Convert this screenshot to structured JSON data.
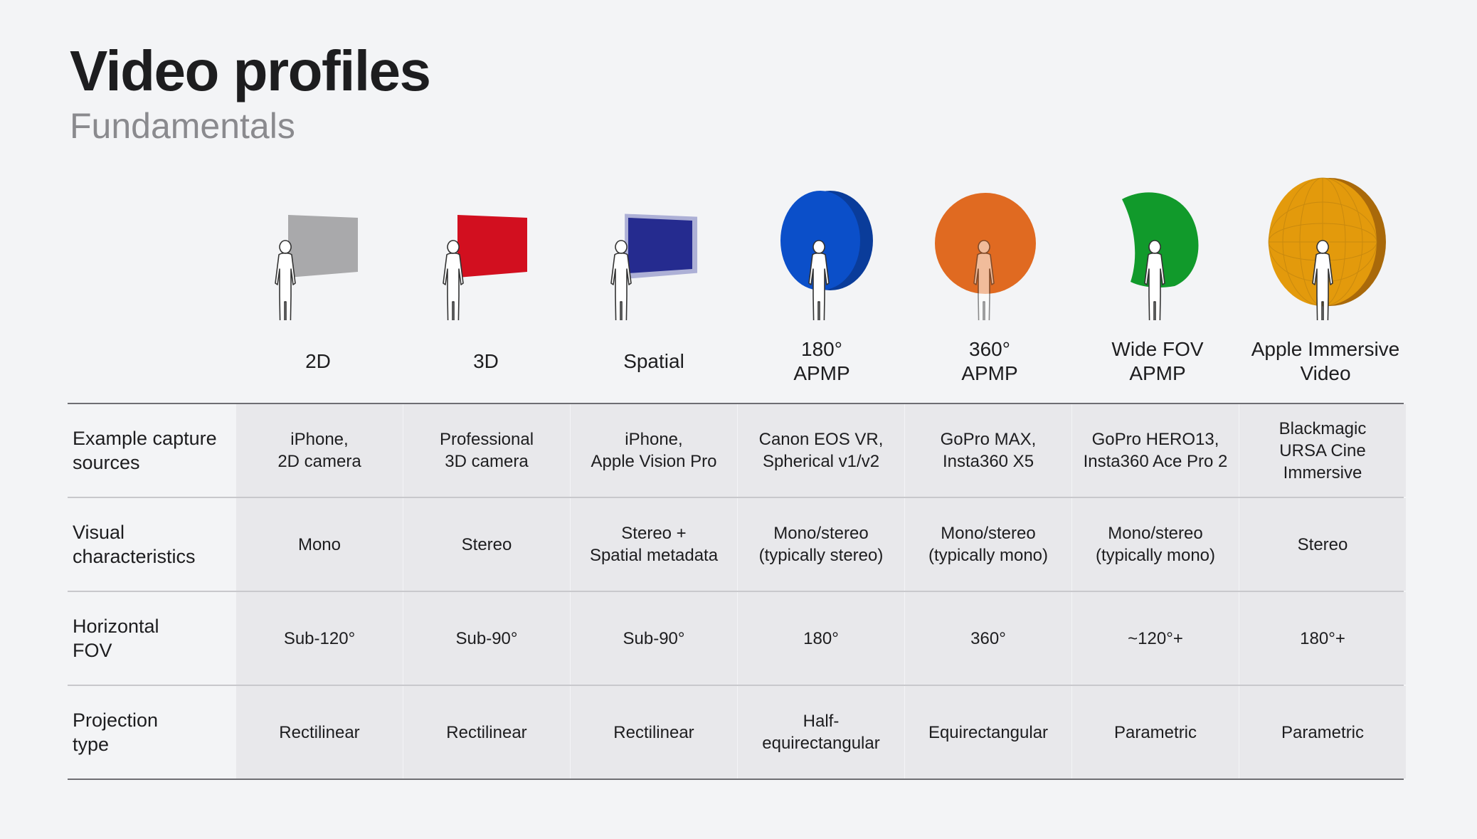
{
  "header": {
    "title": "Video profiles",
    "subtitle": "Fundamentals"
  },
  "profiles": [
    {
      "label": "2D",
      "color": "#a9a9ab",
      "shape": "flat-panel"
    },
    {
      "label": "3D",
      "color": "#d20f1f",
      "shape": "flat-panel"
    },
    {
      "label": "Spatial",
      "color": "#252b8f",
      "shape": "flat-panel-glow"
    },
    {
      "label": "180°\nAPMP",
      "color": "#0b4fc9",
      "shape": "hemisphere"
    },
    {
      "label": "360°\nAPMP",
      "color": "#e06a21",
      "shape": "sphere"
    },
    {
      "label": "Wide FOV\nAPMP",
      "color": "#119a2b",
      "shape": "curved-panel"
    },
    {
      "label": "Apple Immersive\nVideo",
      "color": "#e39a0c",
      "shape": "hemisphere-grid"
    }
  ],
  "rows": [
    {
      "label": "Example capture\nsources",
      "cells": [
        "iPhone,\n2D camera",
        "Professional\n3D camera",
        "iPhone,\nApple Vision Pro",
        "Canon EOS VR,\nSpherical v1/v2",
        "GoPro MAX,\nInsta360 X5",
        "GoPro HERO13,\nInsta360 Ace Pro 2",
        "Blackmagic\nURSA Cine\nImmersive"
      ]
    },
    {
      "label": "Visual\ncharacteristics",
      "cells": [
        "Mono",
        "Stereo",
        "Stereo +\nSpatial metadata",
        "Mono/stereo\n(typically stereo)",
        "Mono/stereo\n(typically mono)",
        "Mono/stereo\n(typically mono)",
        "Stereo"
      ]
    },
    {
      "label": "Horizontal\nFOV",
      "cells": [
        "Sub-120°",
        "Sub-90°",
        "Sub-90°",
        "180°",
        "360°",
        "~120°+",
        "180°+"
      ]
    },
    {
      "label": "Projection\ntype",
      "cells": [
        "Rectilinear",
        "Rectilinear",
        "Rectilinear",
        "Half-\nequirectangular",
        "Equirectangular",
        "Parametric",
        "Parametric"
      ]
    }
  ]
}
